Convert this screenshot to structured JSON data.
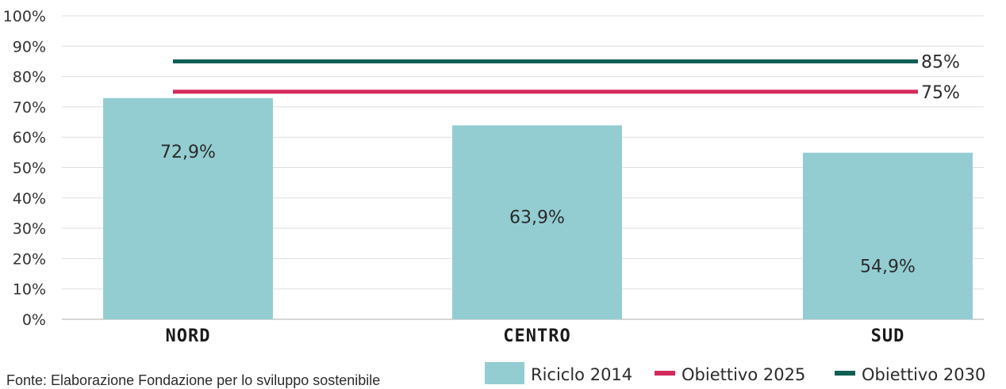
{
  "chart_data": {
    "type": "bar",
    "title": "",
    "xlabel": "",
    "ylabel": "",
    "ylim": [
      0,
      100
    ],
    "yticks": [
      0,
      10,
      20,
      30,
      40,
      50,
      60,
      70,
      80,
      90,
      100
    ],
    "ytick_suffix": "%",
    "grid": true,
    "categories": [
      "NORD",
      "CENTRO",
      "SUD"
    ],
    "series": [
      {
        "name": "Riciclo 2014",
        "values": [
          72.9,
          63.9,
          54.9
        ],
        "value_labels": [
          "72,9%",
          "63,9%",
          "54,9%"
        ],
        "color": "#93cdd2"
      }
    ],
    "reference_lines": [
      {
        "name": "Obiettivo 2025",
        "value": 75,
        "label": "75%",
        "color": "#d42a5b"
      },
      {
        "name": "Obiettivo 2030",
        "value": 85,
        "label": "85%",
        "color": "#0f5f55"
      }
    ],
    "legend": {
      "position": "bottom-right",
      "items": [
        {
          "label": "Riciclo 2014",
          "kind": "box",
          "color": "#93cdd2"
        },
        {
          "label": "Obiettivo 2025",
          "kind": "line",
          "color": "#d42a5b"
        },
        {
          "label": "Obiettivo 2030",
          "kind": "line",
          "color": "#0f5f55"
        }
      ]
    }
  },
  "source_note": "Fonte: Elaborazione Fondazione per lo sviluppo sostenibile"
}
